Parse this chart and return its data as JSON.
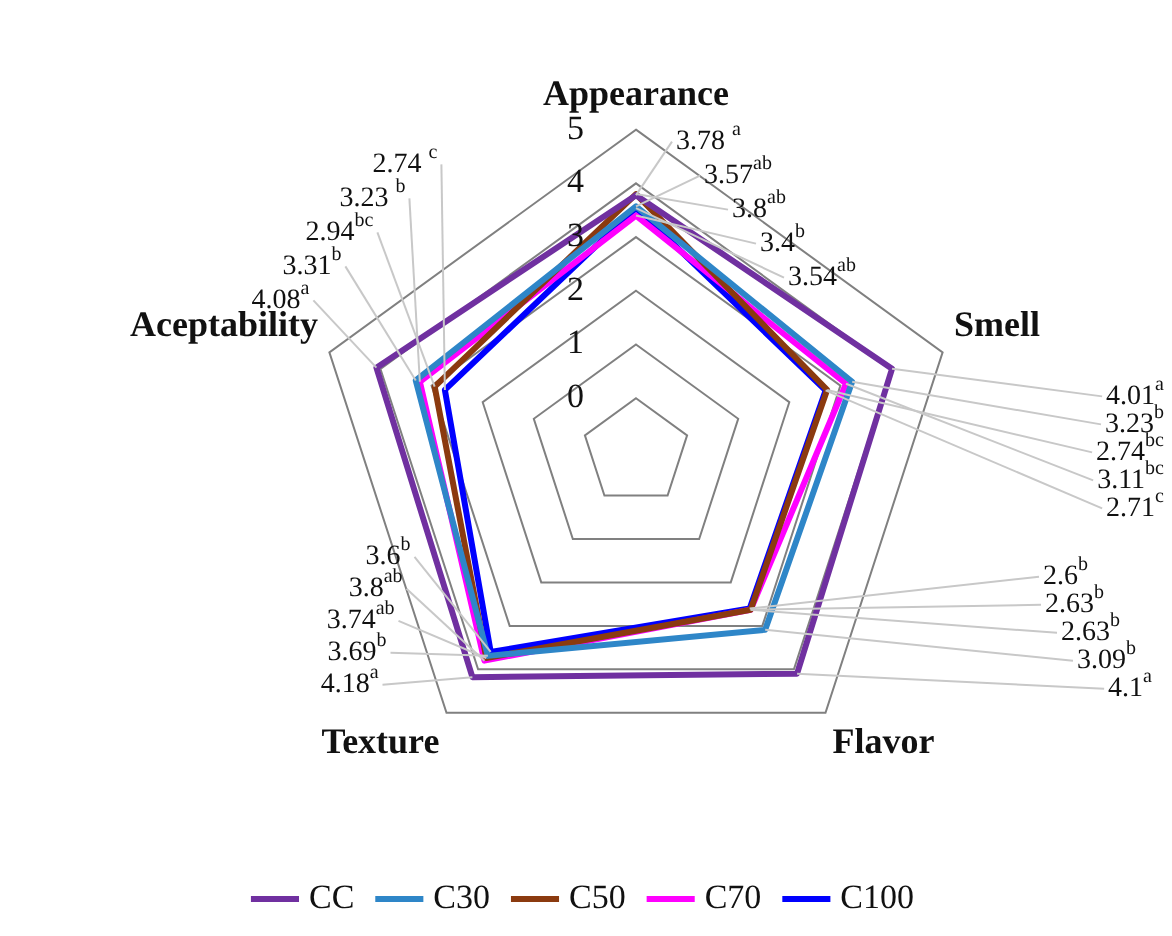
{
  "chart_data": {
    "type": "radar",
    "categories": [
      "Appearance",
      "Smell",
      "Flavor",
      "Texture",
      "Aceptability"
    ],
    "ylim": [
      -1,
      5
    ],
    "yticks": [
      0,
      1,
      2,
      3,
      4,
      5
    ],
    "grid": true,
    "legend": "bottom",
    "marker": "none",
    "series": [
      {
        "name": "CC",
        "color": "#7030a0",
        "values": [
          3.78,
          4.01,
          4.1,
          4.18,
          4.08
        ],
        "value_labels": [
          "3.78 $^{a}$",
          "4.01$^{a}$",
          "4.1$^{a}$",
          "4.18$^{a}$",
          "4.08$^{a}$"
        ]
      },
      {
        "name": "C30",
        "color": "#2e86c8",
        "values": [
          3.57,
          3.23,
          3.09,
          3.69,
          3.31
        ],
        "value_labels": [
          "3.57$^{ab}$",
          "3.23$^{b}$",
          "3.09$^{b}$",
          "3.69$^{b}$",
          "3.31$^{b}$"
        ]
      },
      {
        "name": "C50",
        "color": "#8b3a0f",
        "values": [
          3.8,
          2.74,
          2.63,
          3.74,
          2.94
        ],
        "value_labels": [
          "3.8$^{ab}$",
          "2.74$^{bc}$",
          "2.63$^{b}$",
          "3.74$^{ab}$",
          "2.94$^{bc}$"
        ]
      },
      {
        "name": "C70",
        "color": "#ff00ff",
        "values": [
          3.4,
          3.11,
          2.63,
          3.8,
          3.23
        ],
        "value_labels": [
          "3.4$^{b}$",
          "3.11$^{bc}$",
          "2.63$^{b}$",
          "3.8$^{ab}$",
          "3.23 $^{b}$"
        ]
      },
      {
        "name": "C100",
        "color": "#0000ff",
        "values": [
          3.54,
          2.71,
          2.6,
          3.6,
          2.74
        ],
        "value_labels": [
          "3.54$^{ab}$",
          "2.71$^{c}$",
          "2.6$^{b}$",
          "3.6$^{b}$",
          "2.74 $^{c}$"
        ]
      }
    ]
  }
}
